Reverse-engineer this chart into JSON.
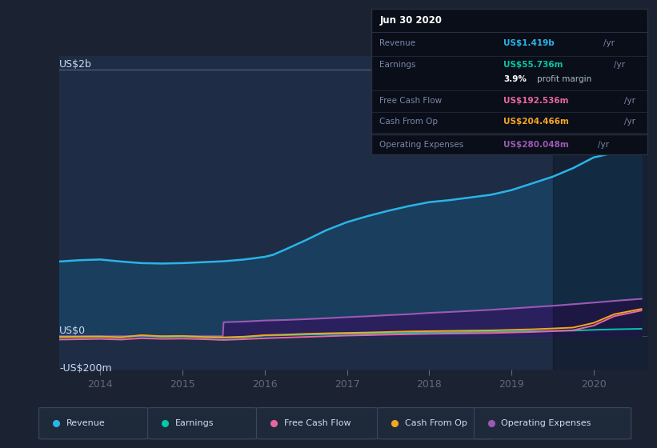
{
  "bg_color": "#1b2333",
  "plot_bg_color": "#1e2d45",
  "title_text": "Jun 30 2020",
  "ylabel_top": "US$2b",
  "ylabel_mid": "US$0",
  "ylabel_bot": "-US$200m",
  "x_ticks": [
    2014,
    2015,
    2016,
    2017,
    2018,
    2019,
    2020
  ],
  "legend_items": [
    "Revenue",
    "Earnings",
    "Free Cash Flow",
    "Cash From Op",
    "Operating Expenses"
  ],
  "legend_colors": [
    "#29b5e8",
    "#00c9a7",
    "#e867a0",
    "#f5a623",
    "#9b59b6"
  ],
  "tooltip": {
    "date": "Jun 30 2020",
    "revenue_color": "#29b5e8",
    "earnings_color": "#00c9a7",
    "fcf_color": "#e867a0",
    "cfo_color": "#f5a623",
    "opex_color": "#9b59b6"
  },
  "revenue": {
    "x": [
      2013.5,
      2013.75,
      2014.0,
      2014.25,
      2014.5,
      2014.75,
      2015.0,
      2015.25,
      2015.5,
      2015.75,
      2016.0,
      2016.1,
      2016.25,
      2016.5,
      2016.75,
      2017.0,
      2017.25,
      2017.5,
      2017.75,
      2018.0,
      2018.25,
      2018.5,
      2018.75,
      2019.0,
      2019.25,
      2019.5,
      2019.75,
      2020.0,
      2020.25,
      2020.5,
      2020.58
    ],
    "y": [
      560,
      570,
      575,
      560,
      548,
      545,
      548,
      555,
      562,
      575,
      595,
      610,
      650,
      720,
      795,
      855,
      900,
      940,
      975,
      1005,
      1020,
      1040,
      1060,
      1095,
      1145,
      1195,
      1260,
      1340,
      1375,
      1410,
      1419
    ]
  },
  "earnings": {
    "x": [
      2013.5,
      2014.0,
      2014.25,
      2014.5,
      2014.75,
      2015.0,
      2015.25,
      2015.5,
      2015.75,
      2016.0,
      2016.25,
      2016.5,
      2016.75,
      2017.0,
      2017.25,
      2017.5,
      2017.75,
      2018.0,
      2018.25,
      2018.5,
      2018.75,
      2019.0,
      2019.25,
      2019.5,
      2019.75,
      2020.0,
      2020.25,
      2020.58
    ],
    "y": [
      -8,
      -5,
      -8,
      5,
      -5,
      -2,
      -8,
      -12,
      -8,
      5,
      8,
      12,
      15,
      18,
      20,
      22,
      25,
      28,
      30,
      32,
      34,
      36,
      38,
      40,
      42,
      48,
      52,
      55.736
    ]
  },
  "free_cash_flow": {
    "x": [
      2013.5,
      2014.0,
      2014.25,
      2014.5,
      2014.75,
      2015.0,
      2015.25,
      2015.5,
      2015.75,
      2016.0,
      2016.25,
      2016.5,
      2016.75,
      2017.0,
      2017.25,
      2017.5,
      2017.75,
      2018.0,
      2018.25,
      2018.5,
      2018.75,
      2019.0,
      2019.25,
      2019.5,
      2019.75,
      2020.0,
      2020.25,
      2020.58
    ],
    "y": [
      -25,
      -20,
      -25,
      -15,
      -20,
      -18,
      -22,
      -28,
      -22,
      -15,
      -10,
      -5,
      0,
      5,
      8,
      12,
      15,
      18,
      20,
      22,
      24,
      28,
      32,
      38,
      45,
      80,
      150,
      192.536
    ]
  },
  "cash_from_op": {
    "x": [
      2013.5,
      2014.0,
      2014.25,
      2014.5,
      2014.75,
      2015.0,
      2015.25,
      2015.5,
      2015.75,
      2016.0,
      2016.25,
      2016.5,
      2016.75,
      2017.0,
      2017.25,
      2017.5,
      2017.75,
      2018.0,
      2018.25,
      2018.5,
      2018.75,
      2019.0,
      2019.25,
      2019.5,
      2019.75,
      2020.0,
      2020.25,
      2020.58
    ],
    "y": [
      -5,
      -2,
      -8,
      8,
      0,
      2,
      -5,
      -8,
      -3,
      8,
      12,
      18,
      22,
      25,
      28,
      32,
      36,
      38,
      40,
      42,
      44,
      48,
      52,
      58,
      65,
      100,
      165,
      204.466
    ]
  },
  "operating_expenses": {
    "x": [
      2013.5,
      2014.0,
      2015.0,
      2015.49,
      2015.5,
      2015.75,
      2016.0,
      2016.25,
      2016.5,
      2016.75,
      2017.0,
      2017.25,
      2017.5,
      2017.75,
      2018.0,
      2018.25,
      2018.5,
      2018.75,
      2019.0,
      2019.25,
      2019.5,
      2019.75,
      2020.0,
      2020.25,
      2020.58
    ],
    "y": [
      0,
      0,
      0,
      0,
      105,
      110,
      118,
      122,
      128,
      135,
      143,
      150,
      158,
      165,
      175,
      182,
      190,
      198,
      208,
      218,
      228,
      240,
      252,
      265,
      280.048
    ]
  },
  "ylim_m": [
    -250,
    2100
  ],
  "xlim": [
    2013.5,
    2020.65
  ]
}
